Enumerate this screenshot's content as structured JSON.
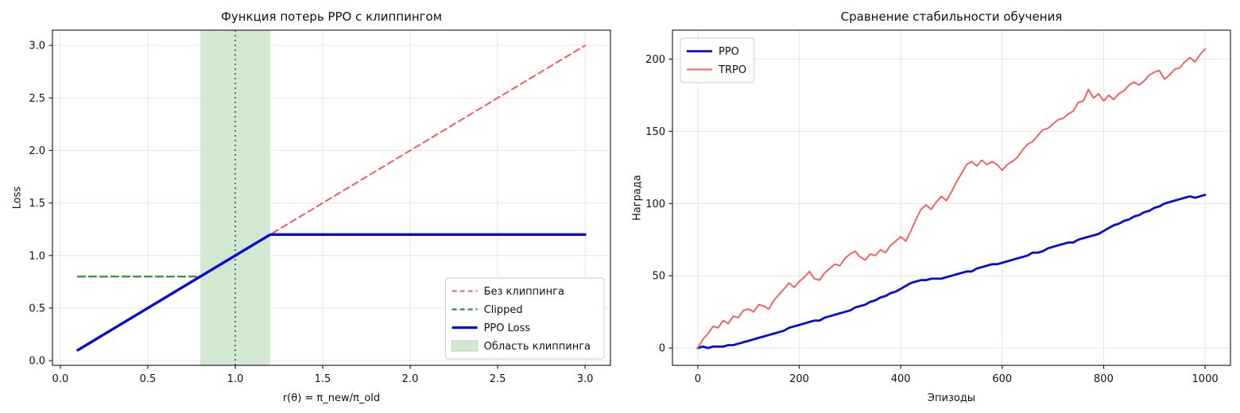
{
  "figure": {
    "background": "#ffffff",
    "spine_color": "#262626",
    "grid_color": "#e6e6e6",
    "text_color": "#111111"
  },
  "chart_data": [
    {
      "type": "line",
      "title": "Функция потерь PPO с клиппингом",
      "xlabel": "r(θ) = π_new/π_old",
      "ylabel": "Loss",
      "xlim": [
        -0.045,
        3.145
      ],
      "ylim": [
        -0.045,
        3.145
      ],
      "xticks": [
        0,
        0.5,
        1,
        1.5,
        2,
        2.5,
        3
      ],
      "xtick_labels": [
        "0.0",
        "0.5",
        "1.0",
        "1.5",
        "2.0",
        "2.5",
        "3.0"
      ],
      "yticks": [
        0,
        0.5,
        1,
        1.5,
        2,
        2.5,
        3
      ],
      "ytick_labels": [
        "0.0",
        "0.5",
        "1.0",
        "1.5",
        "2.0",
        "2.5",
        "3.0"
      ],
      "grid": true,
      "legend": {
        "position": "lower right"
      },
      "vspan": {
        "from": 0.8,
        "to": 1.2,
        "color": "#d2e8d0",
        "edge": "#b5d4b2",
        "label": "Область клиппинга"
      },
      "vline": {
        "x": 1.0,
        "color": "#4d4d4d",
        "dash": "2 4",
        "width": 1.6
      },
      "series": [
        {
          "name": "Без клиппинга",
          "color": "#f45c5c",
          "width": 2,
          "dash": "8 5",
          "x": [
            0.1,
            3.0
          ],
          "y": [
            0.1,
            3.0
          ]
        },
        {
          "name": "Clipped",
          "color": "#38984d",
          "width": 2.4,
          "dash": "9 5",
          "x": [
            0.1,
            0.8
          ],
          "y": [
            0.8,
            0.8
          ]
        },
        {
          "name": "PPO Loss",
          "color": "#0a0ad8",
          "width": 3.4,
          "dash": null,
          "x": [
            0.1,
            1.2,
            3.0
          ],
          "y": [
            0.1,
            1.2,
            1.2
          ]
        }
      ]
    },
    {
      "type": "line",
      "title": "Сравнение стабильности обучения",
      "xlabel": "Эпизоды",
      "ylabel": "Награда",
      "xlim": [
        -50,
        1050
      ],
      "ylim": [
        -12,
        220
      ],
      "xticks": [
        0,
        200,
        400,
        600,
        800,
        1000
      ],
      "xtick_labels": [
        "0",
        "200",
        "400",
        "600",
        "800",
        "1000"
      ],
      "yticks": [
        0,
        50,
        100,
        150,
        200
      ],
      "ytick_labels": [
        "0",
        "50",
        "100",
        "150",
        "200"
      ],
      "grid": true,
      "legend": {
        "position": "upper left"
      },
      "x_start": 0,
      "x_step": 10,
      "series": [
        {
          "name": "PPO",
          "color": "#0a0ad8",
          "width": 2.8,
          "dash": null,
          "values": [
            0,
            1,
            0,
            1,
            1,
            1,
            2,
            2,
            3,
            4,
            5,
            6,
            7,
            8,
            9,
            10,
            11,
            12,
            14,
            15,
            16,
            17,
            18,
            19,
            19,
            21,
            22,
            23,
            24,
            25,
            26,
            28,
            29,
            30,
            32,
            33,
            35,
            36,
            38,
            39,
            41,
            43,
            45,
            46,
            47,
            47,
            48,
            48,
            48,
            49,
            50,
            51,
            52,
            53,
            53,
            55,
            56,
            57,
            58,
            58,
            59,
            60,
            61,
            62,
            63,
            64,
            66,
            66,
            67,
            69,
            70,
            71,
            72,
            73,
            73,
            75,
            76,
            77,
            78,
            79,
            81,
            83,
            85,
            86,
            88,
            89,
            91,
            92,
            94,
            95,
            97,
            98,
            100,
            101,
            102,
            103,
            104,
            105,
            104,
            105,
            106
          ]
        },
        {
          "name": "TRPO",
          "color": "#f45c5c",
          "width": 1.9,
          "dash": null,
          "values": [
            0,
            6,
            10,
            15,
            14,
            19,
            17,
            22,
            21,
            26,
            27,
            25,
            30,
            29,
            27,
            33,
            37,
            41,
            45,
            42,
            46,
            49,
            53,
            48,
            47,
            52,
            55,
            58,
            57,
            62,
            65,
            67,
            63,
            61,
            65,
            64,
            68,
            66,
            71,
            74,
            77,
            74,
            81,
            89,
            96,
            99,
            96,
            101,
            105,
            102,
            108,
            115,
            121,
            127,
            129,
            126,
            130,
            127,
            129,
            127,
            123,
            127,
            129,
            132,
            137,
            141,
            143,
            147,
            151,
            152,
            155,
            158,
            159,
            162,
            164,
            170,
            171,
            179,
            173,
            176,
            171,
            175,
            172,
            176,
            178,
            182,
            184,
            182,
            185,
            189,
            191,
            192,
            186,
            189,
            193,
            194,
            198,
            201,
            198,
            203,
            207
          ]
        }
      ]
    }
  ]
}
